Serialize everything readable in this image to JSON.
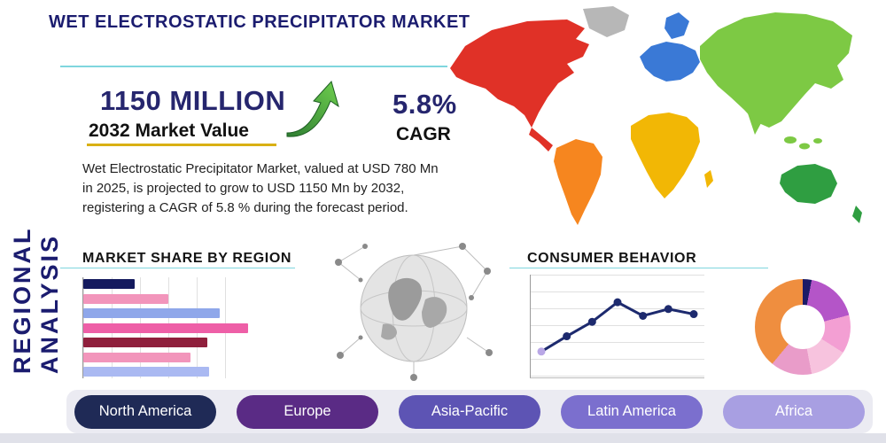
{
  "header": {
    "title": "WET ELECTROSTATIC PRECIPITATOR MARKET"
  },
  "sidebar": {
    "label": "REGIONAL ANALYSIS"
  },
  "stats": {
    "market_value": "1150 MILLION",
    "market_value_label": "2032 Market Value",
    "cagr_value": "5.8%",
    "cagr_label": "CAGR",
    "value_color": "#26266e",
    "underline_color": "#d9b013",
    "arrow_color": "#3fae49"
  },
  "description": "Wet Electrostatic Precipitator Market, valued at USD 780 Mn in 2025, is projected to grow to USD 1150 Mn by 2032, registering a CAGR of 5.8 % during the forecast period.",
  "sections": {
    "market_share_title": "MARKET SHARE BY REGION",
    "consumer_behavior_title": "CONSUMER BEHAVIOR"
  },
  "map": {
    "colors": {
      "north_america": "#e03127",
      "central_america": "#e03127",
      "greenland": "#b7b7b7",
      "south_america": "#f6861f",
      "europe": "#3a79d6",
      "scandinavia": "#3a79d6",
      "africa": "#f2b705",
      "madagascar": "#f2b705",
      "asia": "#7dc944",
      "india": "#7dc944",
      "australia": "#2f9e41",
      "new_zealand": "#2f9e41"
    }
  },
  "accent": {
    "teal_line": "#7fd6de",
    "navy": "#1b1c6f"
  },
  "region_buttons": [
    {
      "label": "North America",
      "color": "#1f2a56"
    },
    {
      "label": "Europe",
      "color": "#5a2b85"
    },
    {
      "label": "Asia-Pacific",
      "color": "#5d54b4"
    },
    {
      "label": "Latin America",
      "color": "#7b6fce"
    },
    {
      "label": "Africa",
      "color": "#a89fe2"
    }
  ],
  "chart_data": [
    {
      "type": "bar",
      "orientation": "horizontal",
      "title": "MARKET SHARE BY REGION",
      "values": [
        30,
        50,
        80,
        97,
        73,
        63,
        74
      ],
      "xlim": [
        0,
        100
      ],
      "colors": [
        "#141a5e",
        "#f295bb",
        "#8fa7ea",
        "#ee5fa7",
        "#8f1f3c",
        "#f295bb",
        "#aab9f2"
      ],
      "grid": "vertical",
      "legend": "none"
    },
    {
      "type": "line",
      "title": "CONSUMER BEHAVIOR",
      "x": [
        1,
        2,
        3,
        4,
        5,
        6,
        7
      ],
      "values": [
        2.0,
        3.8,
        5.5,
        7.8,
        6.2,
        7.0,
        6.4
      ],
      "ylim": [
        0,
        10
      ],
      "line_color": "#1d2a6e",
      "marker_color": "#1d2a6e",
      "first_marker_color": "#b9a7e6",
      "grid": "horizontal",
      "legend": "none"
    },
    {
      "type": "pie",
      "donut": true,
      "segments": [
        {
          "value": 3,
          "color": "#1b1b66"
        },
        {
          "value": 18,
          "color": "#b455c8"
        },
        {
          "value": 13,
          "color": "#f39fd3"
        },
        {
          "value": 13,
          "color": "#f7c3de"
        },
        {
          "value": 14,
          "color": "#e99cc9"
        },
        {
          "value": 39,
          "color": "#ef8e3f"
        }
      ],
      "legend": "none"
    }
  ]
}
